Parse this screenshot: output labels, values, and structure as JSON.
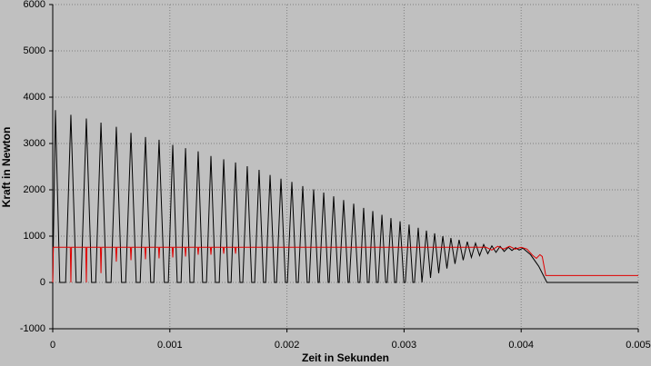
{
  "chart_data": {
    "type": "line",
    "x_label": "Zeit in Sekunden",
    "y_label": "Kraft in Newton",
    "xlim": [
      0,
      0.005
    ],
    "xticks": [
      0,
      0.001,
      0.002,
      0.003,
      0.004,
      0.005
    ],
    "ylim": [
      -1000,
      6000
    ],
    "yticks": [
      -1000,
      0,
      1000,
      2000,
      3000,
      4000,
      5000,
      6000
    ],
    "grid": true,
    "series": [
      {
        "color": "#000000",
        "x": [
          0,
          2.3e-05,
          6e-05,
          0.00011,
          0.000155,
          0.0002,
          0.000242,
          0.000287,
          0.000332,
          0.000367,
          0.000412,
          0.000457,
          0.000498,
          0.000543,
          0.000588,
          0.000623,
          0.000668,
          0.000713,
          0.000747,
          0.000792,
          0.000837,
          0.000863,
          0.000908,
          0.000953,
          0.000987,
          0.001025,
          0.001063,
          0.001096,
          0.001134,
          0.001172,
          0.001204,
          0.001242,
          0.00128,
          0.001313,
          0.001351,
          0.001389,
          0.001422,
          0.00146,
          0.001498,
          0.001523,
          0.001561,
          0.001599,
          0.001623,
          0.001661,
          0.001699,
          0.001724,
          0.001762,
          0.0018,
          0.001818,
          0.001856,
          0.001894,
          0.001911,
          0.001949,
          0.001987,
          0.002004,
          0.002042,
          0.00208,
          0.002097,
          0.002135,
          0.002173,
          0.00219,
          0.002228,
          0.002266,
          0.002276,
          0.002314,
          0.002352,
          0.002361,
          0.002399,
          0.002437,
          0.002446,
          0.002484,
          0.002522,
          0.002532,
          0.00257,
          0.002608,
          0.002623,
          0.002655,
          0.002687,
          0.002701,
          0.002733,
          0.002765,
          0.002779,
          0.002811,
          0.002843,
          0.002856,
          0.002888,
          0.00292,
          0.002934,
          0.002966,
          0.002998,
          0.003011,
          0.003043,
          0.003075,
          0.003089,
          0.003121,
          0.003153,
          0.003191,
          0.003226,
          0.003261,
          0.003296,
          0.003331,
          0.003366,
          0.0034,
          0.003435,
          0.00347,
          0.003505,
          0.00354,
          0.003575,
          0.00361,
          0.003645,
          0.00368,
          0.003715,
          0.00375,
          0.003785,
          0.00382,
          0.003855,
          0.00389,
          0.003921,
          0.003952,
          0.003983,
          0.004014,
          0.00408,
          0.00415,
          0.00422,
          0.005
        ],
        "values": [
          0,
          3720,
          0,
          0,
          3620,
          0,
          0,
          3540,
          0,
          0,
          3450,
          0,
          0,
          3360,
          0,
          0,
          3230,
          0,
          0,
          3140,
          0,
          0,
          3080,
          0,
          0,
          2970,
          0,
          0,
          2900,
          0,
          0,
          2830,
          0,
          0,
          2730,
          0,
          0,
          2660,
          0,
          0,
          2590,
          0,
          0,
          2510,
          0,
          0,
          2430,
          0,
          0,
          2320,
          0,
          0,
          2240,
          0,
          0,
          2170,
          0,
          0,
          2080,
          0,
          0,
          2010,
          0,
          0,
          1940,
          0,
          0,
          1860,
          0,
          0,
          1780,
          0,
          0,
          1700,
          0,
          0,
          1610,
          0,
          0,
          1540,
          0,
          0,
          1460,
          0,
          0,
          1390,
          0,
          0,
          1320,
          0,
          0,
          1250,
          0,
          0,
          1180,
          0,
          1120,
          100,
          1060,
          200,
          1000,
          300,
          960,
          400,
          920,
          480,
          880,
          540,
          850,
          580,
          820,
          620,
          790,
          650,
          780,
          670,
          760,
          690,
          750,
          700,
          740,
          600,
          350,
          0,
          0
        ]
      },
      {
        "color": "#e00000",
        "x": [
          0,
          5e-06,
          0.00015,
          0.000155,
          0.00016,
          0.000282,
          0.000287,
          0.000292,
          0.000407,
          0.000412,
          0.000417,
          0.000538,
          0.000543,
          0.000548,
          0.000663,
          0.000668,
          0.000673,
          0.000787,
          0.000792,
          0.000797,
          0.000903,
          0.000908,
          0.000913,
          0.00102,
          0.001025,
          0.00103,
          0.001129,
          0.001134,
          0.001139,
          0.001237,
          0.001242,
          0.001247,
          0.001346,
          0.001351,
          0.001356,
          0.001455,
          0.00146,
          0.001465,
          0.001556,
          0.001561,
          0.001566,
          0.0037,
          0.00375,
          0.0038,
          0.00385,
          0.0039,
          0.00395,
          0.004,
          0.00405,
          0.0041,
          0.00413,
          0.00416,
          0.00418,
          0.00421,
          0.005
        ],
        "values": [
          0,
          760,
          760,
          0,
          760,
          760,
          0,
          760,
          760,
          200,
          760,
          760,
          450,
          760,
          760,
          480,
          760,
          760,
          500,
          760,
          760,
          520,
          760,
          760,
          540,
          760,
          760,
          560,
          760,
          760,
          600,
          760,
          760,
          600,
          760,
          760,
          620,
          760,
          760,
          620,
          760,
          760,
          700,
          780,
          720,
          780,
          720,
          760,
          720,
          580,
          520,
          600,
          560,
          150,
          150
        ]
      }
    ]
  }
}
